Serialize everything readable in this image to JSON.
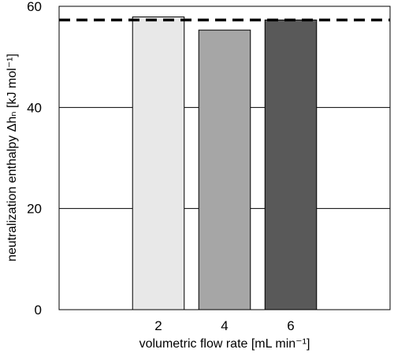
{
  "chart_data": {
    "type": "bar",
    "categories": [
      "2",
      "4",
      "6"
    ],
    "values": [
      57.9,
      55.3,
      57.3
    ],
    "bar_colors": [
      "#e8e8e8",
      "#a6a6a6",
      "#595959"
    ],
    "reference_line": {
      "value": 57.3,
      "style": "dashed",
      "color": "#000000"
    },
    "xlabel": "volumetric flow rate [mL min⁻¹]",
    "ylabel": "neutralization enthalpy Δhₙ [kJ mol⁻¹]",
    "ylim": [
      0,
      60
    ],
    "yticks": [
      0,
      20,
      40,
      60
    ],
    "grid": true
  }
}
